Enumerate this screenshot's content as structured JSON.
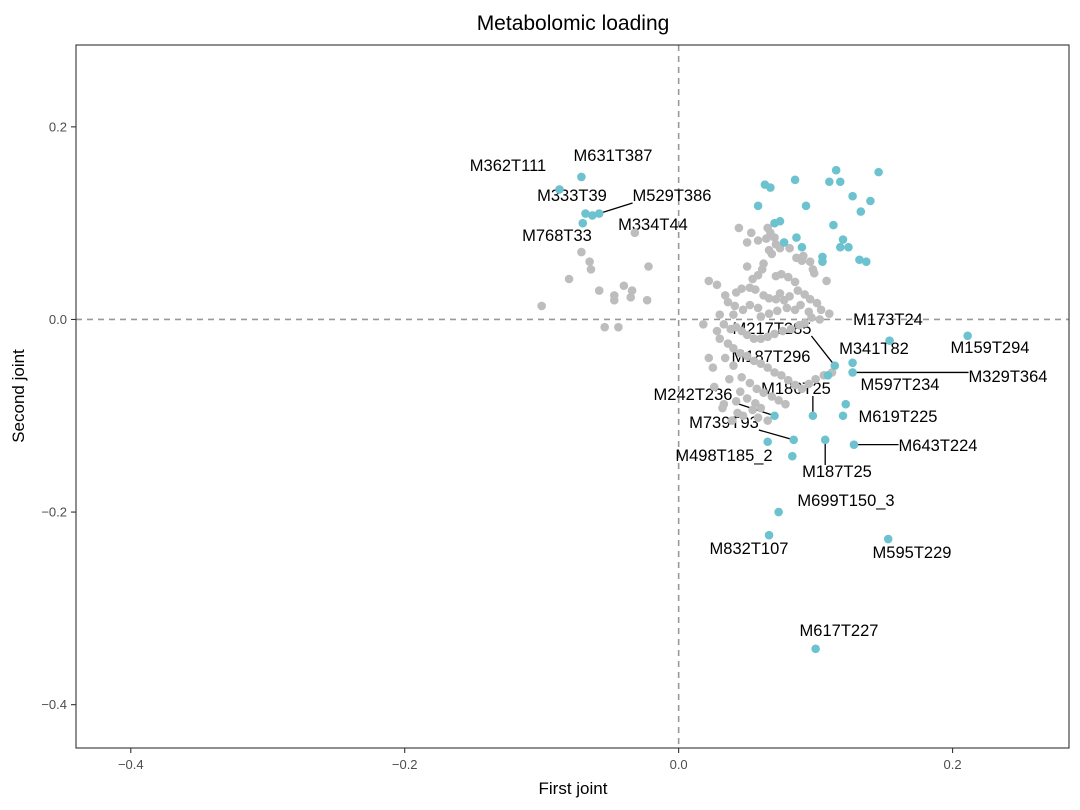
{
  "chart_data": {
    "type": "scatter",
    "title": "Metabolomic loading",
    "xlabel": "First joint",
    "ylabel": "Second joint",
    "xlim": [
      -0.44,
      0.285
    ],
    "ylim": [
      -0.445,
      0.285
    ],
    "x_ticks": [
      -0.4,
      -0.2,
      0.0,
      0.2
    ],
    "x_tick_labels": [
      "−0.4",
      "−0.2",
      "0.0",
      "0.2"
    ],
    "y_ticks": [
      -0.4,
      -0.2,
      0.0,
      0.2
    ],
    "y_tick_labels": [
      "−0.4",
      "−0.2",
      "0.0",
      "0.2"
    ],
    "reference_lines": {
      "x": 0,
      "y": 0,
      "style": "dashed"
    },
    "grid": false,
    "colors": {
      "highlighted": "#6cc3cf",
      "other": "#bdbdbd",
      "reference_line": "#999999"
    },
    "series": [
      {
        "points": [
          [
            -0.071,
            0.148
          ],
          [
            -0.087,
            0.135
          ],
          [
            -0.068,
            0.11
          ],
          [
            -0.063,
            0.108
          ],
          [
            -0.058,
            0.11
          ],
          [
            -0.07,
            0.1
          ],
          [
            0.058,
            0.118
          ],
          [
            0.063,
            0.14
          ],
          [
            0.067,
            0.137
          ],
          [
            0.085,
            0.145
          ],
          [
            0.07,
            0.1
          ],
          [
            0.074,
            0.102
          ],
          [
            0.093,
            0.118
          ],
          [
            0.086,
            0.085
          ],
          [
            0.09,
            0.075
          ],
          [
            0.11,
            0.143
          ],
          [
            0.115,
            0.155
          ],
          [
            0.118,
            0.143
          ],
          [
            0.127,
            0.128
          ],
          [
            0.133,
            0.112
          ],
          [
            0.146,
            0.153
          ],
          [
            0.14,
            0.123
          ],
          [
            0.113,
            0.098
          ],
          [
            0.12,
            0.083
          ],
          [
            0.118,
            0.075
          ],
          [
            0.124,
            0.075
          ],
          [
            0.105,
            0.065
          ],
          [
            0.105,
            0.06
          ],
          [
            0.132,
            0.062
          ],
          [
            0.137,
            0.06
          ],
          [
            0.077,
            0.08
          ],
          [
            0.154,
            -0.022
          ],
          [
            0.211,
            -0.017
          ],
          [
            0.114,
            -0.048
          ],
          [
            0.127,
            -0.045
          ],
          [
            0.109,
            -0.058
          ],
          [
            0.127,
            -0.055
          ],
          [
            0.122,
            -0.088
          ],
          [
            0.12,
            -0.1
          ],
          [
            0.098,
            -0.1
          ],
          [
            0.07,
            -0.1
          ],
          [
            0.084,
            -0.125
          ],
          [
            0.107,
            -0.125
          ],
          [
            0.128,
            -0.13
          ],
          [
            0.065,
            -0.127
          ],
          [
            0.083,
            -0.142
          ],
          [
            0.073,
            -0.2
          ],
          [
            0.066,
            -0.224
          ],
          [
            0.153,
            -0.228
          ],
          [
            0.1,
            -0.342
          ]
        ]
      },
      {
        "points": [
          [
            -0.1,
            0.014
          ],
          [
            -0.08,
            0.042
          ],
          [
            -0.064,
            0.052
          ],
          [
            -0.065,
            0.06
          ],
          [
            -0.071,
            0.07
          ],
          [
            -0.058,
            0.03
          ],
          [
            -0.047,
            0.025
          ],
          [
            -0.047,
            0.02
          ],
          [
            -0.04,
            0.035
          ],
          [
            -0.034,
            0.03
          ],
          [
            -0.022,
            0.055
          ],
          [
            -0.035,
            0.023
          ],
          [
            -0.023,
            0.02
          ],
          [
            -0.054,
            -0.008
          ],
          [
            -0.044,
            -0.008
          ],
          [
            -0.032,
            0.09
          ],
          [
            0.044,
            0.095
          ],
          [
            0.053,
            0.09
          ],
          [
            0.05,
            0.08
          ],
          [
            0.058,
            0.082
          ],
          [
            0.064,
            0.084
          ],
          [
            0.067,
            0.09
          ],
          [
            0.066,
            0.072
          ],
          [
            0.065,
            0.095
          ],
          [
            0.07,
            0.085
          ],
          [
            0.071,
            0.078
          ],
          [
            0.068,
            0.068
          ],
          [
            0.074,
            0.074
          ],
          [
            0.081,
            0.074
          ],
          [
            0.086,
            0.064
          ],
          [
            0.091,
            0.066
          ],
          [
            0.09,
            0.061
          ],
          [
            0.096,
            0.06
          ],
          [
            0.098,
            0.052
          ],
          [
            0.099,
            0.048
          ],
          [
            0.05,
            0.055
          ],
          [
            0.062,
            0.058
          ],
          [
            0.061,
            0.052
          ],
          [
            0.058,
            0.046
          ],
          [
            0.054,
            0.042
          ],
          [
            0.071,
            0.045
          ],
          [
            0.075,
            0.047
          ],
          [
            0.08,
            0.044
          ],
          [
            0.085,
            0.039
          ],
          [
            0.022,
            0.04
          ],
          [
            0.028,
            0.036
          ],
          [
            0.034,
            0.025
          ],
          [
            0.042,
            0.028
          ],
          [
            0.046,
            0.032
          ],
          [
            0.052,
            0.033
          ],
          [
            0.056,
            0.031
          ],
          [
            0.062,
            0.025
          ],
          [
            0.066,
            0.022
          ],
          [
            0.071,
            0.021
          ],
          [
            0.074,
            0.027
          ],
          [
            0.077,
            0.02
          ],
          [
            0.081,
            0.024
          ],
          [
            0.087,
            0.03
          ],
          [
            0.092,
            0.026
          ],
          [
            0.096,
            0.021
          ],
          [
            0.101,
            0.017
          ],
          [
            0.104,
            0.01
          ],
          [
            0.11,
            0.006
          ],
          [
            0.103,
            0.0
          ],
          [
            0.097,
            0.002
          ],
          [
            0.092,
            -0.004
          ],
          [
            0.088,
            -0.006
          ],
          [
            0.082,
            -0.01
          ],
          [
            0.076,
            -0.012
          ],
          [
            0.07,
            -0.015
          ],
          [
            0.065,
            -0.018
          ],
          [
            0.06,
            -0.02
          ],
          [
            0.055,
            -0.02
          ],
          [
            0.05,
            -0.016
          ],
          [
            0.046,
            -0.012
          ],
          [
            0.042,
            -0.008
          ],
          [
            0.038,
            -0.01
          ],
          [
            0.033,
            -0.005
          ],
          [
            0.028,
            -0.012
          ],
          [
            0.03,
            -0.02
          ],
          [
            0.036,
            -0.025
          ],
          [
            0.04,
            -0.03
          ],
          [
            0.045,
            -0.035
          ],
          [
            0.05,
            -0.038
          ],
          [
            0.055,
            -0.043
          ],
          [
            0.06,
            -0.046
          ],
          [
            0.065,
            -0.05
          ],
          [
            0.07,
            -0.055
          ],
          [
            0.075,
            -0.058
          ],
          [
            0.08,
            -0.063
          ],
          [
            0.085,
            -0.068
          ],
          [
            0.09,
            -0.072
          ],
          [
            0.095,
            -0.067
          ],
          [
            0.1,
            -0.062
          ],
          [
            0.106,
            -0.058
          ],
          [
            0.112,
            -0.055
          ],
          [
            0.034,
            -0.04
          ],
          [
            0.04,
            -0.048
          ],
          [
            0.046,
            -0.06
          ],
          [
            0.052,
            -0.066
          ],
          [
            0.057,
            -0.072
          ],
          [
            0.062,
            -0.076
          ],
          [
            0.068,
            -0.08
          ],
          [
            0.073,
            -0.084
          ],
          [
            0.078,
            -0.088
          ],
          [
            0.045,
            -0.075
          ],
          [
            0.05,
            -0.082
          ],
          [
            0.056,
            -0.087
          ],
          [
            0.06,
            -0.092
          ],
          [
            0.043,
            -0.097
          ],
          [
            0.047,
            -0.1
          ],
          [
            0.033,
            -0.088
          ],
          [
            0.026,
            -0.07
          ],
          [
            0.022,
            -0.04
          ],
          [
            0.025,
            -0.05
          ],
          [
            0.037,
            -0.062
          ],
          [
            0.018,
            -0.005
          ],
          [
            0.06,
            0.003
          ],
          [
            0.066,
            0.006
          ],
          [
            0.072,
            0.009
          ],
          [
            0.079,
            0.012
          ],
          [
            0.085,
            0.01
          ],
          [
            0.089,
            0.015
          ],
          [
            0.095,
            0.008
          ],
          [
            0.058,
            0.012
          ],
          [
            0.052,
            0.015
          ],
          [
            0.047,
            0.01
          ],
          [
            0.041,
            0.014
          ],
          [
            0.036,
            0.018
          ],
          [
            0.03,
            0.005
          ],
          [
            0.04,
            0.005
          ],
          [
            0.108,
            0.04
          ],
          [
            0.032,
            -0.092
          ],
          [
            0.042,
            -0.085
          ],
          [
            0.058,
            -0.102
          ],
          [
            0.065,
            -0.105
          ],
          [
            0.054,
            -0.094
          ],
          [
            0.039,
            -0.105
          ]
        ]
      }
    ],
    "annotations": [
      {
        "text": "M631T387",
        "point": [
          -0.071,
          0.148
        ]
      },
      {
        "text": "M362T111",
        "point": [
          -0.087,
          0.135
        ]
      },
      {
        "text": "M333T39",
        "point": [
          -0.068,
          0.11
        ]
      },
      {
        "text": "M529T386",
        "point": [
          -0.058,
          0.11
        ]
      },
      {
        "text": "M334T44",
        "point": [
          -0.063,
          0.108
        ]
      },
      {
        "text": "M768T33",
        "point": [
          -0.07,
          0.1
        ]
      },
      {
        "text": "M173T24",
        "point": [
          0.154,
          -0.022
        ]
      },
      {
        "text": "M217T285",
        "point": [
          0.114,
          -0.048
        ]
      },
      {
        "text": "M159T294",
        "point": [
          0.211,
          -0.017
        ]
      },
      {
        "text": "M341T82",
        "point": [
          0.127,
          -0.045
        ]
      },
      {
        "text": "M187T296",
        "point": [
          0.109,
          -0.058
        ]
      },
      {
        "text": "M597T234",
        "point": [
          0.122,
          -0.088
        ]
      },
      {
        "text": "M329T364",
        "point": [
          0.127,
          -0.055
        ]
      },
      {
        "text": "M186T25",
        "point": [
          0.098,
          -0.1
        ]
      },
      {
        "text": "M242T236",
        "point": [
          0.07,
          -0.1
        ]
      },
      {
        "text": "M619T225",
        "point": [
          0.12,
          -0.1
        ]
      },
      {
        "text": "M739T93",
        "point": [
          0.084,
          -0.125
        ]
      },
      {
        "text": "M643T224",
        "point": [
          0.128,
          -0.13
        ]
      },
      {
        "text": "M498T185_2",
        "point": [
          0.083,
          -0.142
        ]
      },
      {
        "text": "M187T25",
        "point": [
          0.107,
          -0.125
        ]
      },
      {
        "text": "M699T150_3",
        "point": [
          0.073,
          -0.2
        ]
      },
      {
        "text": "M832T107",
        "point": [
          0.066,
          -0.224
        ]
      },
      {
        "text": "M595T229",
        "point": [
          0.153,
          -0.228
        ]
      },
      {
        "text": "M617T227",
        "point": [
          0.1,
          -0.342
        ]
      }
    ]
  }
}
